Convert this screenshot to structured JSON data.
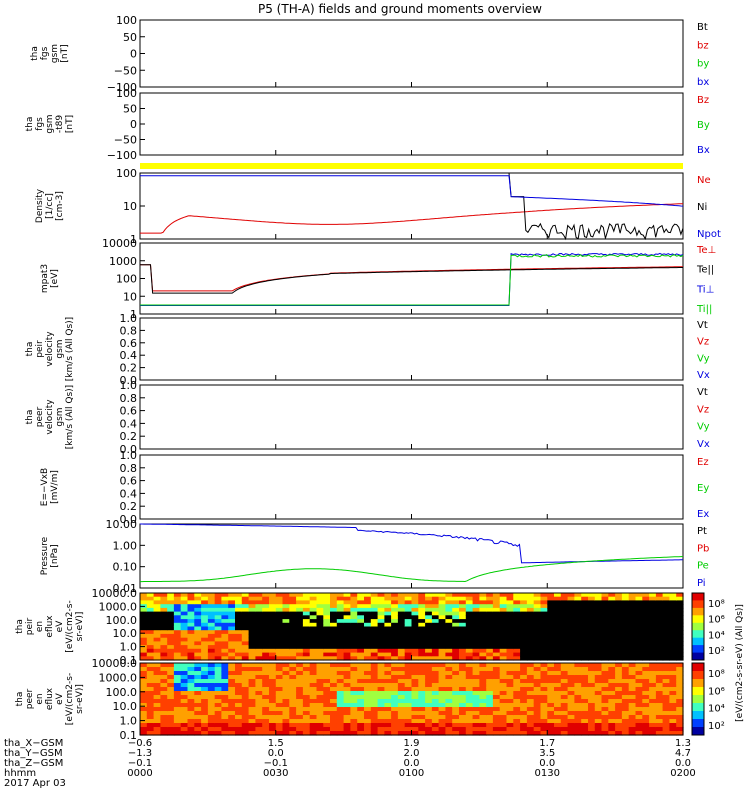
{
  "title": "P5 (TH-A) fields and ground moments overview",
  "colors": {
    "black": "#000000",
    "red": "#e00000",
    "green": "#00cc00",
    "blue": "#0000e0",
    "yellow": "#ffff00"
  },
  "chart_data": [
    {
      "type": "line",
      "id": "fgs_gsm",
      "ylabel": [
        "tha",
        "fgs",
        "gsm",
        "[nT]"
      ],
      "ylim": [
        -100,
        100
      ],
      "yticks": [
        "100",
        "50",
        "0",
        "−50",
        "−100"
      ],
      "legend": [
        {
          "label": "Bt",
          "color": "black"
        },
        {
          "label": "bz",
          "color": "red"
        },
        {
          "label": "by",
          "color": "green"
        },
        {
          "label": "bx",
          "color": "blue"
        }
      ]
    },
    {
      "type": "line",
      "id": "fgs_gsm_t89",
      "ylabel": [
        "tha",
        "fgs",
        "gsm",
        "-t89",
        "[nT]"
      ],
      "ylim": [
        -100,
        100
      ],
      "yticks": [
        "100",
        "50",
        "0",
        "−50",
        "−100"
      ],
      "legend": [
        {
          "label": "Bz",
          "color": "red"
        },
        {
          "label": "By",
          "color": "green"
        },
        {
          "label": "Bx",
          "color": "blue"
        }
      ]
    },
    {
      "type": "line",
      "id": "density",
      "ylabel": [
        "Density",
        "[1/cc]",
        "[cm-3]"
      ],
      "ylim": [
        0.5,
        100
      ],
      "scale": "log",
      "yticks": [
        "100",
        "10",
        "1"
      ],
      "legend": [
        {
          "label": "Ne",
          "color": "red"
        },
        {
          "label": "Ni",
          "color": "black"
        },
        {
          "label": "Npot",
          "color": "blue"
        }
      ]
    },
    {
      "type": "line",
      "id": "temperature",
      "ylabel": [
        "mpat3",
        "[eV]"
      ],
      "ylim": [
        1,
        10000
      ],
      "scale": "log",
      "yticks": [
        "10000",
        "1000",
        "100",
        "10",
        "1"
      ],
      "legend": [
        {
          "label": "Te⊥",
          "color": "red"
        },
        {
          "label": "Te||",
          "color": "black"
        },
        {
          "label": "Ti⊥",
          "color": "blue"
        },
        {
          "label": "Ti||",
          "color": "green"
        }
      ]
    },
    {
      "type": "line",
      "id": "peir_velocity",
      "ylabel": [
        "tha",
        "peir",
        "velocity",
        "gsm",
        "[km/s (All Qs)]"
      ],
      "ylim": [
        0,
        1
      ],
      "yticks": [
        "1.0",
        "0.8",
        "0.6",
        "0.4",
        "0.2",
        "0.0"
      ],
      "legend": [
        {
          "label": "Vt",
          "color": "black"
        },
        {
          "label": "Vz",
          "color": "red"
        },
        {
          "label": "Vy",
          "color": "green"
        },
        {
          "label": "Vx",
          "color": "blue"
        }
      ]
    },
    {
      "type": "line",
      "id": "peer_velocity",
      "ylabel": [
        "tha",
        "peer",
        "velocity",
        "gsm",
        "[km/s (All Qs)]"
      ],
      "ylim": [
        0,
        1
      ],
      "yticks": [
        "1.0",
        "0.8",
        "0.6",
        "0.4",
        "0.2",
        "0.0"
      ],
      "legend": [
        {
          "label": "Vt",
          "color": "black"
        },
        {
          "label": "Vz",
          "color": "red"
        },
        {
          "label": "Vy",
          "color": "green"
        },
        {
          "label": "Vx",
          "color": "blue"
        }
      ]
    },
    {
      "type": "line",
      "id": "efield",
      "ylabel": [
        "E=−VxB",
        "[mV/m]"
      ],
      "ylim": [
        0,
        1
      ],
      "yticks": [
        "1.0",
        "0.8",
        "0.6",
        "0.4",
        "0.2",
        "0.0"
      ],
      "legend": [
        {
          "label": "Ez",
          "color": "red"
        },
        {
          "label": "Ey",
          "color": "green"
        },
        {
          "label": "Ex",
          "color": "blue"
        }
      ]
    },
    {
      "type": "line",
      "id": "pressure",
      "ylabel": [
        "Pressure",
        "[nPa]"
      ],
      "ylim": [
        0.01,
        10
      ],
      "scale": "log",
      "yticks": [
        "10.00",
        "1.00",
        "0.10",
        "0.01"
      ],
      "legend": [
        {
          "label": "Pt",
          "color": "black"
        },
        {
          "label": "Pb",
          "color": "red"
        },
        {
          "label": "Pe",
          "color": "green"
        },
        {
          "label": "Pi",
          "color": "blue"
        }
      ]
    },
    {
      "type": "heatmap",
      "id": "peir_en_eflux",
      "ylabel": [
        "tha",
        "peir",
        "en",
        "eflux",
        "eV",
        "[eV/(cm2-s-",
        "sr-eV)]"
      ],
      "ylim": [
        0.1,
        10000
      ],
      "scale": "log",
      "yticks": [
        "10000.0",
        "1000.0",
        "100.0",
        "10.0",
        "1.0",
        "0.1"
      ]
    },
    {
      "type": "heatmap",
      "id": "peer_en_eflux",
      "ylabel": [
        "tha",
        "peer",
        "en",
        "eflux",
        "eV",
        "[eV/(cm2-s-",
        "sr-eV)]"
      ],
      "ylim": [
        0.1,
        10000
      ],
      "scale": "log",
      "yticks": [
        "10000.0",
        "1000.0",
        "100.0",
        "10.0",
        "1.0",
        "0.1"
      ]
    }
  ],
  "colorbars": [
    {
      "ticks": [
        "10⁸",
        "10⁶",
        "10⁴",
        "10²"
      ]
    },
    {
      "ticks": [
        "10⁸",
        "10⁶",
        "10⁴",
        "10²"
      ]
    }
  ],
  "colorbar_label": "[eV/(cm2-s-sr-eV) (All Qs)]",
  "x_axis": {
    "rows": [
      {
        "label": "tha_X−GSM",
        "values": [
          "−0.6",
          "1.5",
          "1.9",
          "1.7",
          "1.3"
        ]
      },
      {
        "label": "tha_Y−GSM",
        "values": [
          "−1.3",
          "0.0",
          "2.0",
          "3.5",
          "4.7"
        ]
      },
      {
        "label": "tha_Z−GSM",
        "values": [
          "−0.1",
          "−0.1",
          "0.0",
          "0.0",
          "0.0"
        ]
      },
      {
        "label": "hhmm",
        "values": [
          "0000",
          "0030",
          "0100",
          "0130",
          "0200"
        ]
      }
    ],
    "date": "2017 Apr 03",
    "time_range_min": [
      0,
      120
    ]
  }
}
